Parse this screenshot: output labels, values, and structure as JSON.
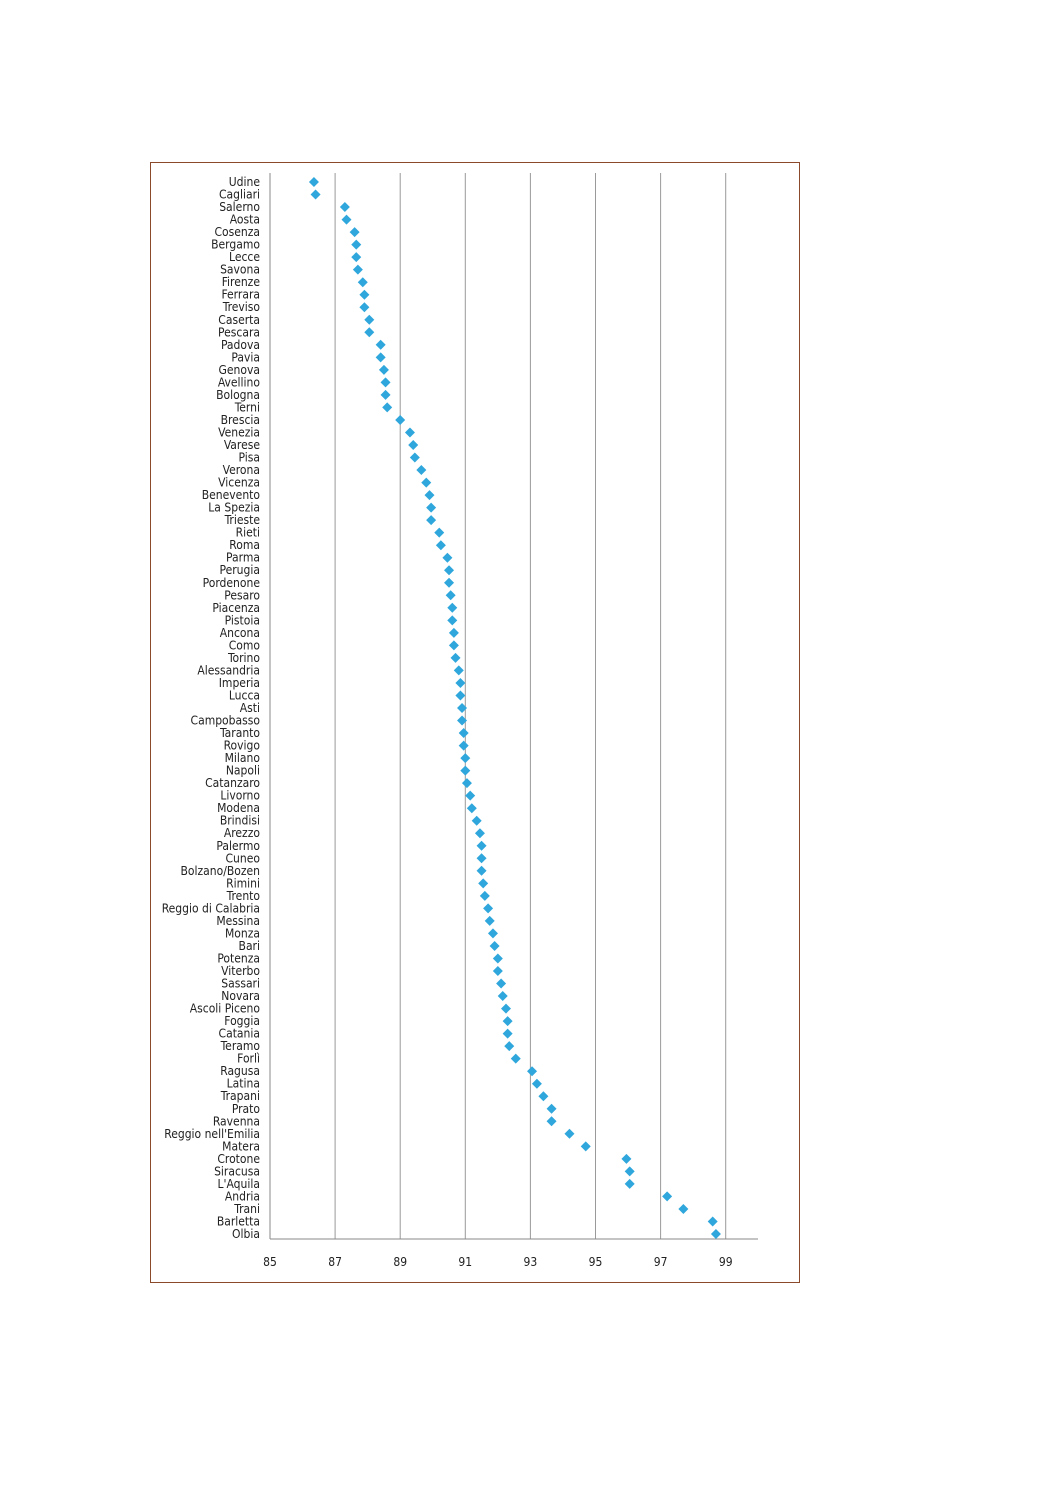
{
  "chart_data": {
    "type": "scatter",
    "orientation": "horizontal-dot",
    "xlim": [
      85,
      100
    ],
    "x_ticks": [
      85,
      87,
      89,
      91,
      93,
      95,
      97,
      99
    ],
    "grid": "vertical",
    "marker_color": "#2fa7dc",
    "frame_color": "#8b4a2b",
    "categories": [
      "Udine",
      "Cagliari",
      "Salerno",
      "Aosta",
      "Cosenza",
      "Bergamo",
      "Lecce",
      "Savona",
      "Firenze",
      "Ferrara",
      "Treviso",
      "Caserta",
      "Pescara",
      "Padova",
      "Pavia",
      "Genova",
      "Avellino",
      "Bologna",
      "Terni",
      "Brescia",
      "Venezia",
      "Varese",
      "Pisa",
      "Verona",
      "Vicenza",
      "Benevento",
      "La Spezia",
      "Trieste",
      "Rieti",
      "Roma",
      "Parma",
      "Perugia",
      "Pordenone",
      "Pesaro",
      "Piacenza",
      "Pistoia",
      "Ancona",
      "Como",
      "Torino",
      "Alessandria",
      "Imperia",
      "Lucca",
      "Asti",
      "Campobasso",
      "Taranto",
      "Rovigo",
      "Milano",
      "Napoli",
      "Catanzaro",
      "Livorno",
      "Modena",
      "Brindisi",
      "Arezzo",
      "Palermo",
      "Cuneo",
      "Bolzano/Bozen",
      "Rimini",
      "Trento",
      "Reggio di Calabria",
      "Messina",
      "Monza",
      "Bari",
      "Potenza",
      "Viterbo",
      "Sassari",
      "Novara",
      "Ascoli Piceno",
      "Foggia",
      "Catania",
      "Teramo",
      "Forlì",
      "Ragusa",
      "Latina",
      "Trapani",
      "Prato",
      "Ravenna",
      "Reggio nell'Emilia",
      "Matera",
      "Crotone",
      "Siracusa",
      "L'Aquila",
      "Andria",
      "Trani",
      "Barletta",
      "Olbia"
    ],
    "values": [
      86.35,
      86.4,
      87.3,
      87.35,
      87.6,
      87.65,
      87.65,
      87.7,
      87.85,
      87.9,
      87.9,
      88.05,
      88.05,
      88.4,
      88.4,
      88.5,
      88.55,
      88.55,
      88.6,
      89.0,
      89.3,
      89.4,
      89.45,
      89.65,
      89.8,
      89.9,
      89.95,
      89.95,
      90.2,
      90.25,
      90.45,
      90.5,
      90.5,
      90.55,
      90.6,
      90.6,
      90.65,
      90.65,
      90.7,
      90.8,
      90.85,
      90.85,
      90.9,
      90.9,
      90.95,
      90.95,
      91.0,
      91.0,
      91.05,
      91.15,
      91.2,
      91.35,
      91.45,
      91.5,
      91.5,
      91.5,
      91.55,
      91.6,
      91.7,
      91.75,
      91.85,
      91.9,
      92.0,
      92.0,
      92.1,
      92.15,
      92.25,
      92.3,
      92.3,
      92.35,
      92.55,
      93.05,
      93.2,
      93.4,
      93.65,
      93.65,
      94.2,
      94.7,
      95.95,
      96.05,
      96.05,
      97.2,
      97.7,
      98.6,
      98.7
    ]
  }
}
